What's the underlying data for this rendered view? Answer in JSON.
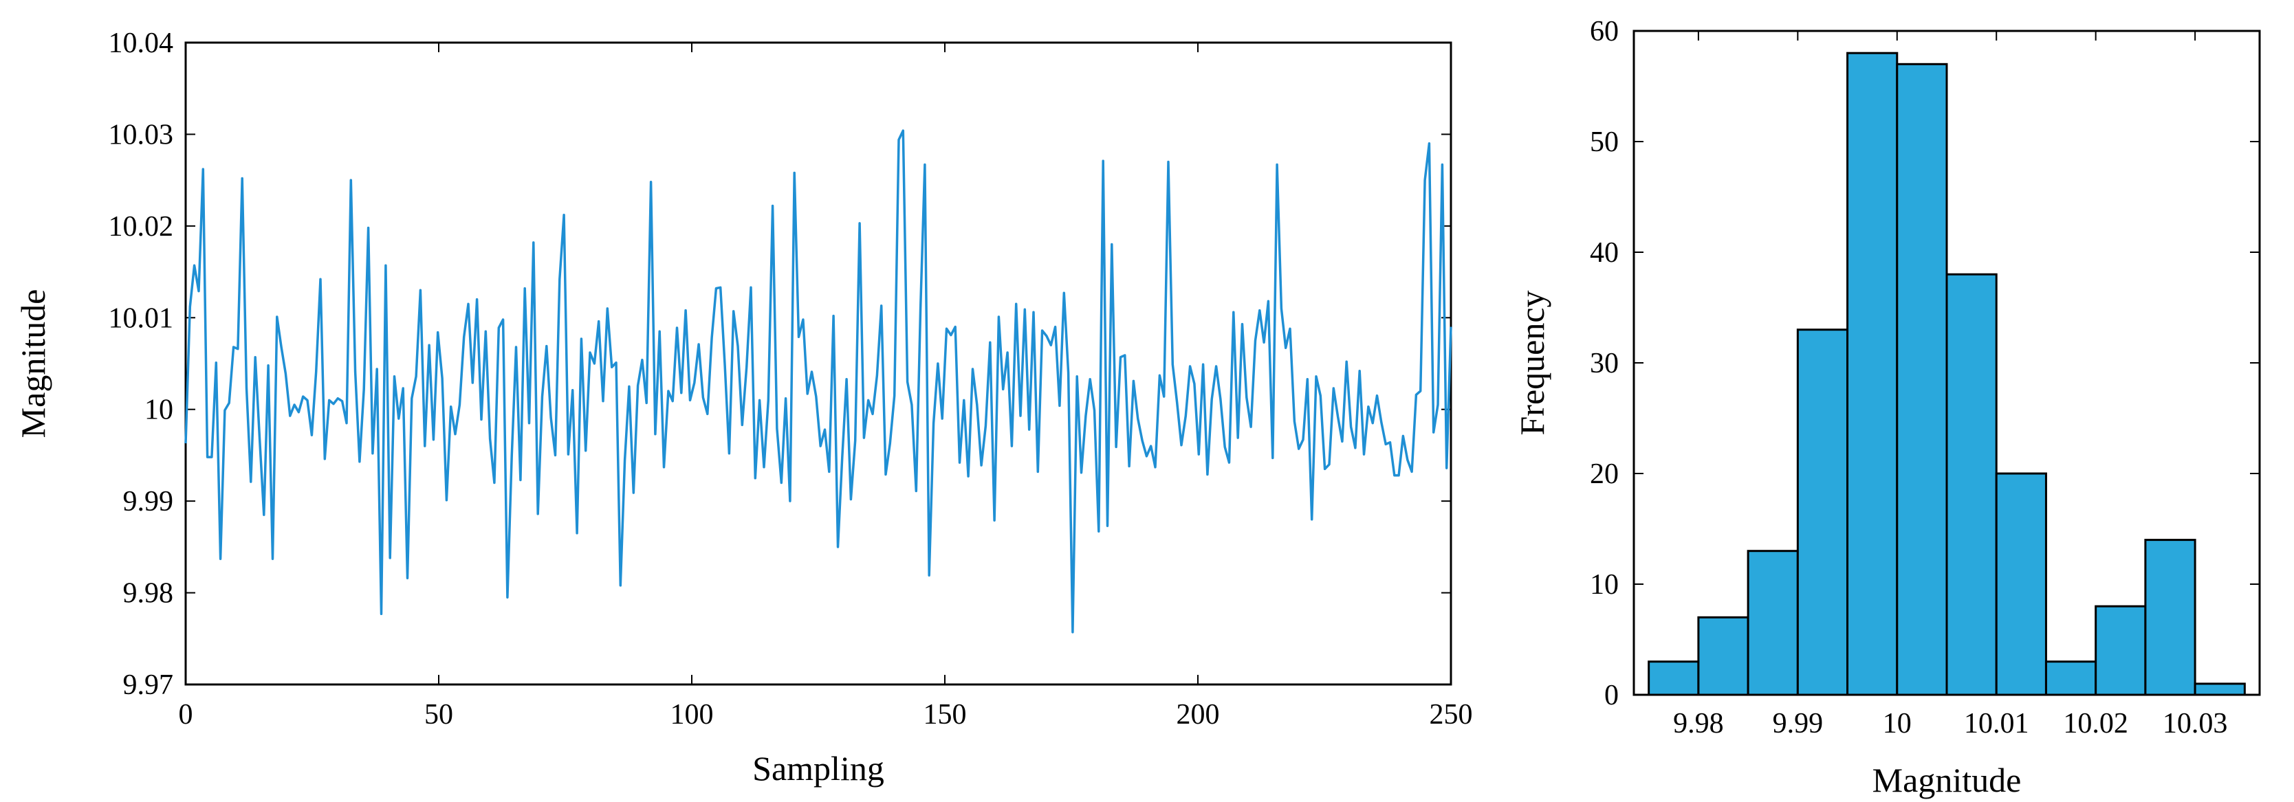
{
  "chart_data": [
    {
      "type": "line",
      "xlabel": "Sampling",
      "ylabel": "Magnitude",
      "xlim": [
        0,
        250
      ],
      "ylim": [
        9.97,
        10.04
      ],
      "grid": false,
      "x_ticks": [
        "0",
        "50",
        "100",
        "150",
        "200",
        "250"
      ],
      "y_ticks": [
        "9.97",
        "9.98",
        "9.99",
        "10",
        "10.01",
        "10.02",
        "10.03",
        "10.04"
      ],
      "line_color": "#1f8fd4",
      "series": [
        {
          "values": [
            9.9963,
            10.0112,
            10.0157,
            10.0129,
            10.0262,
            9.9948,
            9.9948,
            10.0051,
            9.9837,
            9.9999,
            10.0007,
            10.0068,
            10.0066,
            10.0252,
            10.0023,
            9.9921,
            10.0057,
            9.9969,
            9.9885,
            10.0048,
            9.9837,
            10.0101,
            10.0068,
            10.0039,
            9.9993,
            10.0005,
            9.9997,
            10.0014,
            10.001,
            9.9972,
            10.0041,
            10.0142,
            9.9946,
            10.001,
            10.0006,
            10.0012,
            10.0009,
            9.9985,
            10.025,
            10.0041,
            9.9943,
            10.0022,
            10.0198,
            9.9952,
            10.0044,
            9.9777,
            10.0157,
            9.9838,
            10.0036,
            9.999,
            10.0023,
            9.9816,
            10.0012,
            10.0036,
            10.013,
            9.996,
            10.007,
            9.9967,
            10.0084,
            10.0034,
            9.9901,
            10.0003,
            9.9973,
            10.0005,
            10.0079,
            10.0115,
            10.0029,
            10.012,
            9.9989,
            10.0085,
            9.9968,
            9.992,
            10.0089,
            10.0098,
            9.9795,
            9.9949,
            10.0068,
            9.9923,
            10.0132,
            9.9985,
            10.0182,
            9.9886,
            10.0014,
            10.0069,
            9.9991,
            9.995,
            10.0142,
            10.0212,
            9.9951,
            10.0021,
            9.9865,
            10.0077,
            9.9955,
            10.0062,
            10.005,
            10.0096,
            10.0009,
            10.011,
            10.0046,
            10.0051,
            9.9808,
            9.9945,
            10.0025,
            9.9909,
            10.0026,
            10.0054,
            10.0007,
            10.0248,
            9.9973,
            10.0085,
            9.9937,
            10.002,
            10.0009,
            10.0089,
            10.0018,
            10.0108,
            10.001,
            10.0029,
            10.0071,
            10.0013,
            9.9995,
            10.0078,
            10.0132,
            10.0133,
            10.0048,
            9.9952,
            10.0107,
            10.0069,
            9.9983,
            10.0046,
            10.0133,
            9.9925,
            10.001,
            9.9937,
            10.001,
            10.0222,
            9.9979,
            9.992,
            10.0012,
            9.99,
            10.0258,
            10.0079,
            10.0098,
            10.0017,
            10.0041,
            10.0014,
            9.996,
            9.9978,
            9.9932,
            10.0102,
            9.985,
            9.9948,
            10.0033,
            9.9902,
            9.9966,
            10.0203,
            9.9969,
            10.001,
            9.9995,
            10.0037,
            10.0113,
            9.9929,
            9.9963,
            10.0015,
            10.0294,
            10.0304,
            10.003,
            10.0005,
            9.9911,
            10.011,
            10.0267,
            9.9819,
            9.9985,
            10.005,
            9.999,
            10.0088,
            10.0081,
            10.009,
            9.9942,
            10.001,
            9.9927,
            10.0044,
            10.0005,
            9.9939,
            9.9982,
            10.0073,
            9.9879,
            10.0101,
            10.0022,
            10.0062,
            9.996,
            10.0115,
            9.9993,
            10.0109,
            9.9978,
            10.0106,
            9.9932,
            10.0086,
            10.008,
            10.007,
            10.009,
            10.0004,
            10.0127,
            10.004,
            9.9757,
            10.0036,
            9.9931,
            9.9993,
            10.0033,
            9.9999,
            9.9867,
            10.0271,
            9.9873,
            10.018,
            9.9959,
            10.0057,
            10.0059,
            9.9938,
            10.0031,
            9.999,
            9.9966,
            9.9949,
            9.996,
            9.9937,
            10.0037,
            10.0014,
            10.027,
            10.0049,
            10.0008,
            9.9961,
            9.9993,
            10.0047,
            10.0028,
            9.9951,
            10.0049,
            9.9929,
            10.0011,
            10.0047,
            10.0011,
            9.9959,
            9.9942,
            10.0106,
            9.9969,
            10.0093,
            10.0013,
            9.9981,
            10.0075,
            10.0108,
            10.0073,
            10.0118,
            9.9947,
            10.0267,
            10.011,
            10.0067,
            10.0088,
            9.9987,
            9.9957,
            9.9967,
            10.0033,
            9.988,
            10.0036,
            10.0015,
            9.9935,
            9.994,
            10.0023,
            9.9992,
            9.9965,
            10.0052,
            9.9981,
            9.9958,
            10.0042,
            9.9951,
            10.0003,
            9.9985,
            10.0015,
            9.9986,
            9.9962,
            9.9964,
            9.9928,
            9.9928,
            9.9971,
            9.9945,
            9.9932,
            10.0016,
            10.002,
            10.025,
            10.029,
            9.9975,
            10.0005,
            10.0267,
            9.9936,
            10.009
          ]
        }
      ]
    },
    {
      "type": "bar",
      "xlabel": "Magnitude",
      "ylabel": "Frequency",
      "xlim": [
        9.9735,
        10.0365
      ],
      "ylim": [
        0,
        60
      ],
      "grid": false,
      "x_ticks": [
        "9.98",
        "9.99",
        "10",
        "10.01",
        "10.02",
        "10.03"
      ],
      "y_ticks": [
        "0",
        "10",
        "20",
        "30",
        "40",
        "50",
        "60"
      ],
      "bar_color": "#2aa8dc",
      "bin_edges": [
        9.975,
        9.98,
        9.985,
        9.99,
        9.995,
        10.0,
        10.005,
        10.01,
        10.015,
        10.02,
        10.025,
        10.03,
        10.035
      ],
      "values": [
        3,
        7,
        13,
        33,
        58,
        57,
        38,
        20,
        3,
        8,
        14,
        1
      ]
    }
  ]
}
